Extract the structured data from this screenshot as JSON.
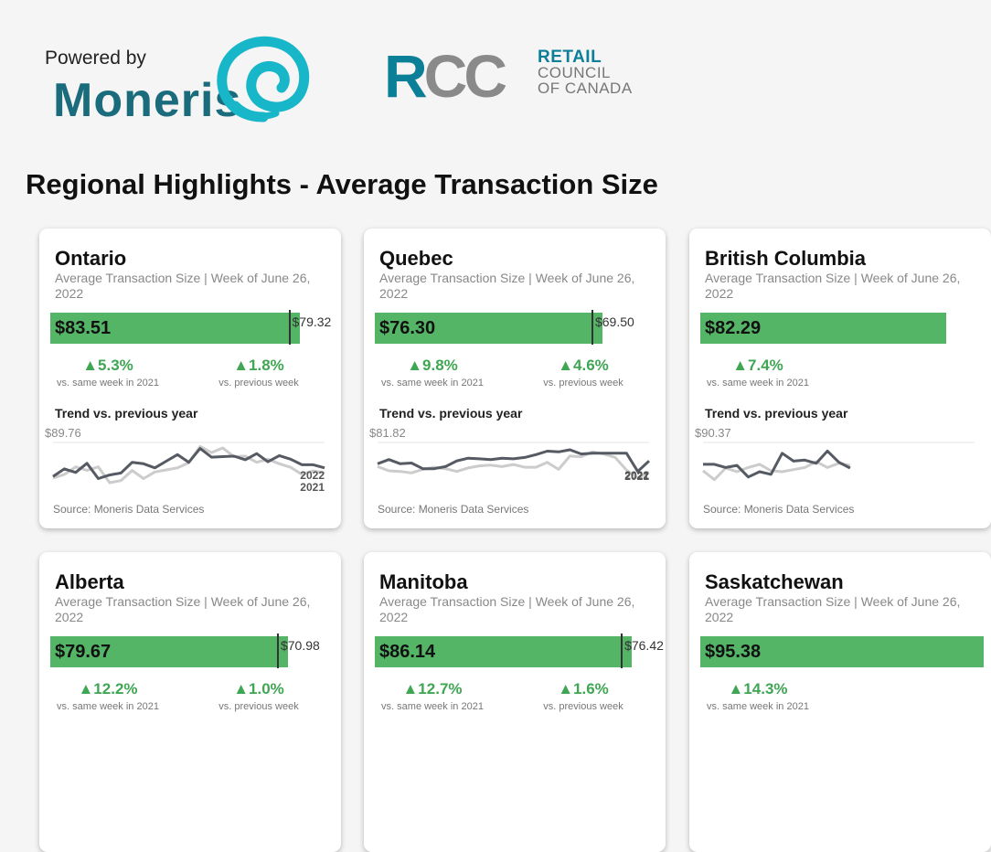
{
  "header": {
    "powered_by": "Powered by",
    "moneris": "Moneris",
    "rcc": {
      "r": "R",
      "cc": "CC",
      "line1": "RETAIL",
      "line2": "COUNCIL",
      "line3": "OF CANADA"
    },
    "brand_colors": {
      "moneris": "#1a6b7c",
      "moneris_swirl": "#18b6c9",
      "rcc_blue": "#0c7f98",
      "rcc_grey": "#8a8a8a"
    }
  },
  "title": "Regional Highlights - Average Transaction Size",
  "common": {
    "subtitle": "Average Transaction Size | Week of June 26, 2022",
    "change_a_caption": "vs. same week in 2021",
    "change_b_caption": "vs. previous week",
    "trend_title": "Trend vs. previous year",
    "source": "Source: Moneris Data Services",
    "label_2022": "2022",
    "label_2021": "2021"
  },
  "colors": {
    "bar": "#55b567",
    "positive": "#3fa653",
    "line_2022": "#555a63",
    "line_2021": "#cccccc"
  },
  "chart_data": [
    {
      "type": "line",
      "region": "Ontario",
      "current_value": "$83.51",
      "previous_value": "$79.32",
      "current": 83.51,
      "previous": 79.32,
      "change_vs_2021": "▲5.3%",
      "change_vs_prev_week": "▲1.8%",
      "trend_max_label": "$89.76",
      "ylim": [
        79,
        89.76
      ],
      "series": [
        {
          "name": "2022",
          "values": [
            82.0,
            83.5,
            82.8,
            84.6,
            81.6,
            82.3,
            82.7,
            84.8,
            84.5,
            83.7,
            85.0,
            86.3,
            84.8,
            87.5,
            85.8,
            85.9,
            86.0,
            85.3,
            86.5,
            84.9,
            86.1,
            85.4,
            84.3,
            84.3,
            83.7
          ]
        },
        {
          "name": "2021",
          "values": [
            81.7,
            82.4,
            83.9,
            83.2,
            83.9,
            80.8,
            81.2,
            83.2,
            81.6,
            82.9,
            83.3,
            83.7,
            84.7,
            87.9,
            86.7,
            87.6,
            85.9,
            86.0,
            84.8,
            85.4,
            84.5,
            83.8,
            82.4,
            83.1,
            82.7
          ]
        }
      ]
    },
    {
      "type": "line",
      "region": "Quebec",
      "current_value": "$76.30",
      "previous_value": "$69.50",
      "current": 76.3,
      "previous": 69.5,
      "change_vs_2021": "▲9.8%",
      "change_vs_prev_week": "▲4.6%",
      "trend_max_label": "$81.82",
      "ylim": [
        74,
        81.82
      ],
      "series": [
        {
          "name": "2022",
          "values": [
            78.0,
            78.6,
            78.0,
            78.1,
            77.3,
            77.3,
            77.6,
            78.4,
            78.8,
            78.7,
            78.6,
            78.8,
            78.7,
            78.9,
            79.3,
            79.8,
            79.7,
            80.0,
            79.4,
            79.5,
            79.5,
            79.5,
            79.5,
            76.9,
            78.4
          ]
        },
        {
          "name": "2021",
          "values": [
            77.6,
            77.0,
            76.9,
            76.7,
            77.2,
            77.5,
            77.3,
            76.9,
            77.4,
            77.7,
            77.8,
            77.6,
            77.9,
            77.5,
            77.5,
            78.2,
            77.2,
            79.1,
            79.0,
            79.7,
            79.4,
            78.9,
            77.1,
            76.0,
            76.8
          ]
        }
      ]
    },
    {
      "type": "line",
      "region": "British Columbia",
      "current_value": "$82.29",
      "previous_value": "",
      "current": 82.29,
      "previous": null,
      "change_vs_2021": "▲7.4%",
      "change_vs_prev_week": "",
      "trend_max_label": "$90.37",
      "ylim": [
        80,
        90.37
      ],
      "series": [
        {
          "name": "2022",
          "values": [
            85.2,
            85.2,
            84.6,
            85.0,
            82.8,
            83.8,
            83.3,
            87.3,
            85.8,
            86.0,
            85.4,
            87.7,
            85.6,
            84.5
          ]
        },
        {
          "name": "2021",
          "values": [
            84.0,
            82.3,
            84.5,
            83.8,
            84.6,
            85.2,
            84.0,
            83.8,
            84.2,
            84.6,
            85.7,
            84.6,
            85.4,
            85.0
          ]
        }
      ]
    },
    {
      "type": "bar",
      "region": "Alberta",
      "current_value": "$79.67",
      "previous_value": "$70.98",
      "current": 79.67,
      "previous": 70.98,
      "change_vs_2021": "▲12.2%",
      "change_vs_prev_week": "▲1.0%"
    },
    {
      "type": "bar",
      "region": "Manitoba",
      "current_value": "$86.14",
      "previous_value": "$76.42",
      "current": 86.14,
      "previous": 76.42,
      "change_vs_2021": "▲12.7%",
      "change_vs_prev_week": "▲1.6%"
    },
    {
      "type": "bar",
      "region": "Saskatchewan",
      "current_value": "$95.38",
      "previous_value": "",
      "current": 95.38,
      "previous": null,
      "change_vs_2021": "▲14.3%",
      "change_vs_prev_week": ""
    }
  ]
}
